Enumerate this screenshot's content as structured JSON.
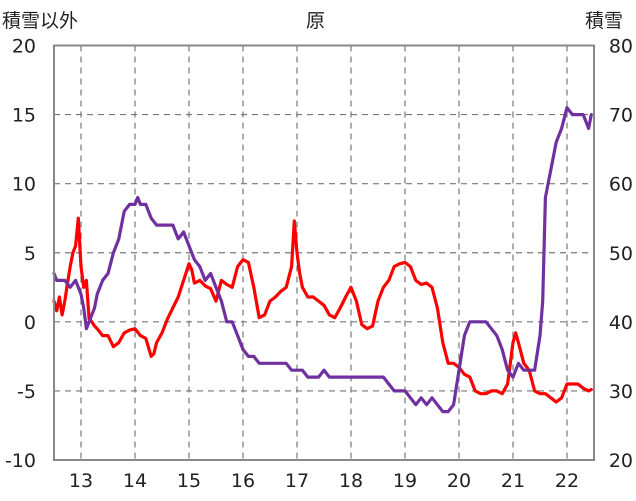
{
  "chart_data": {
    "type": "line",
    "title": "原",
    "left_axis_label": "積雪以外",
    "right_axis_label": "積雪",
    "x_ticks": [
      "13",
      "14",
      "15",
      "16",
      "17",
      "18",
      "19",
      "20",
      "21",
      "22"
    ],
    "xlim": [
      2012.5,
      2022.5
    ],
    "ylim_left": [
      -10,
      20
    ],
    "ylim_right": [
      20,
      80
    ],
    "yticks_left": [
      20,
      15,
      10,
      5,
      0,
      -5,
      -10
    ],
    "yticks_right": [
      80,
      70,
      60,
      50,
      40,
      30,
      20
    ],
    "grid": "dashed vertical lines at year ticks, dashed horizontal lines at left-axis ticks",
    "series": [
      {
        "axis": "left",
        "color": "#ff0000",
        "x": [
          2012.5,
          2012.55,
          2012.6,
          2012.65,
          2012.7,
          2012.75,
          2012.8,
          2012.85,
          2012.9,
          2012.95,
          2013.0,
          2013.05,
          2013.1,
          2013.15,
          2013.2,
          2013.25,
          2013.3,
          2013.4,
          2013.5,
          2013.6,
          2013.7,
          2013.8,
          2013.9,
          2014.0,
          2014.1,
          2014.2,
          2014.3,
          2014.35,
          2014.4,
          2014.5,
          2014.6,
          2014.7,
          2014.8,
          2014.9,
          2015.0,
          2015.05,
          2015.1,
          2015.2,
          2015.3,
          2015.4,
          2015.5,
          2015.6,
          2015.7,
          2015.8,
          2015.9,
          2016.0,
          2016.1,
          2016.2,
          2016.3,
          2016.4,
          2016.5,
          2016.6,
          2016.7,
          2016.8,
          2016.9,
          2016.95,
          2017.0,
          2017.05,
          2017.1,
          2017.2,
          2017.3,
          2017.4,
          2017.5,
          2017.6,
          2017.7,
          2017.8,
          2017.9,
          2018.0,
          2018.1,
          2018.2,
          2018.3,
          2018.4,
          2018.5,
          2018.6,
          2018.7,
          2018.8,
          2018.9,
          2019.0,
          2019.1,
          2019.2,
          2019.3,
          2019.4,
          2019.5,
          2019.6,
          2019.7,
          2019.8,
          2019.9,
          2020.0,
          2020.1,
          2020.2,
          2020.3,
          2020.4,
          2020.5,
          2020.6,
          2020.7,
          2020.8,
          2020.9,
          2021.0,
          2021.05,
          2021.1,
          2021.2,
          2021.3,
          2021.4,
          2021.5,
          2021.6,
          2021.7,
          2021.8,
          2021.9,
          2022.0,
          2022.1,
          2022.2,
          2022.3,
          2022.4,
          2022.45
        ],
        "values": [
          1.5,
          0.8,
          1.8,
          0.5,
          1.5,
          2.8,
          4.0,
          5.0,
          5.5,
          7.5,
          4.0,
          2.5,
          3.0,
          0.2,
          0.0,
          -0.3,
          -0.5,
          -1.0,
          -1.0,
          -1.8,
          -1.5,
          -0.8,
          -0.6,
          -0.5,
          -1.0,
          -1.2,
          -2.5,
          -2.3,
          -1.5,
          -0.8,
          0.2,
          1.0,
          1.8,
          3.0,
          4.2,
          3.8,
          2.8,
          3.0,
          2.6,
          2.4,
          1.5,
          3.0,
          2.7,
          2.5,
          4.0,
          4.5,
          4.3,
          2.5,
          0.3,
          0.5,
          1.5,
          1.8,
          2.2,
          2.5,
          4.0,
          7.3,
          5.0,
          3.5,
          2.5,
          1.8,
          1.8,
          1.5,
          1.2,
          0.5,
          0.3,
          1.0,
          1.8,
          2.5,
          1.5,
          -0.2,
          -0.5,
          -0.3,
          1.5,
          2.5,
          3.0,
          4.0,
          4.2,
          4.3,
          4.0,
          3.0,
          2.7,
          2.8,
          2.5,
          1.0,
          -1.5,
          -3.0,
          -3.0,
          -3.3,
          -3.8,
          -4.0,
          -5.0,
          -5.2,
          -5.2,
          -5.0,
          -5.0,
          -5.2,
          -4.5,
          -1.5,
          -0.8,
          -1.5,
          -3.0,
          -3.5,
          -5.0,
          -5.2,
          -5.2,
          -5.5,
          -5.8,
          -5.5,
          -4.5,
          -4.5,
          -4.5,
          -4.8,
          -5.0,
          -4.9
        ],
        "line_width": 3.2
      },
      {
        "axis": "right",
        "color": "#7030a0",
        "x": [
          2012.5,
          2012.55,
          2012.6,
          2012.7,
          2012.8,
          2012.9,
          2013.0,
          2013.05,
          2013.1,
          2013.15,
          2013.2,
          2013.25,
          2013.3,
          2013.4,
          2013.5,
          2013.6,
          2013.7,
          2013.8,
          2013.9,
          2014.0,
          2014.05,
          2014.1,
          2014.15,
          2014.2,
          2014.3,
          2014.4,
          2014.5,
          2014.6,
          2014.7,
          2014.8,
          2014.9,
          2015.0,
          2015.1,
          2015.2,
          2015.3,
          2015.4,
          2015.5,
          2015.6,
          2015.7,
          2015.8,
          2015.9,
          2016.0,
          2016.1,
          2016.2,
          2016.3,
          2016.4,
          2016.5,
          2016.6,
          2016.7,
          2016.8,
          2016.9,
          2017.0,
          2017.1,
          2017.2,
          2017.3,
          2017.4,
          2017.5,
          2017.6,
          2017.7,
          2017.8,
          2017.9,
          2018.0,
          2018.1,
          2018.2,
          2018.3,
          2018.4,
          2018.5,
          2018.6,
          2018.7,
          2018.8,
          2018.9,
          2019.0,
          2019.1,
          2019.2,
          2019.3,
          2019.4,
          2019.5,
          2019.6,
          2019.7,
          2019.8,
          2019.9,
          2020.0,
          2020.1,
          2020.2,
          2020.3,
          2020.4,
          2020.5,
          2020.6,
          2020.7,
          2020.8,
          2020.9,
          2021.0,
          2021.1,
          2021.2,
          2021.3,
          2021.4,
          2021.5,
          2021.55,
          2021.6,
          2021.7,
          2021.8,
          2021.9,
          2022.0,
          2022.1,
          2022.2,
          2022.3,
          2022.4,
          2022.45
        ],
        "values": [
          47,
          46,
          46,
          46,
          45,
          46,
          44,
          42,
          39,
          40,
          41,
          42,
          44,
          46,
          47,
          50,
          52,
          56,
          57,
          57,
          58,
          57,
          57,
          57,
          55,
          54,
          54,
          54,
          54,
          52,
          53,
          51,
          49,
          48,
          46,
          47,
          45,
          43,
          40,
          40,
          38,
          36,
          35,
          35,
          34,
          34,
          34,
          34,
          34,
          34,
          33,
          33,
          33,
          32,
          32,
          32,
          33,
          32,
          32,
          32,
          32,
          32,
          32,
          32,
          32,
          32,
          32,
          32,
          31,
          30,
          30,
          30,
          29,
          28,
          29,
          28,
          29,
          28,
          27,
          27,
          28,
          33,
          38,
          40,
          40,
          40,
          40,
          39,
          38,
          36,
          33,
          32,
          34,
          33,
          33,
          33,
          38,
          43,
          58,
          62,
          66,
          68,
          71,
          70,
          70,
          70,
          68,
          70
        ],
        "line_width": 3.2
      }
    ]
  }
}
